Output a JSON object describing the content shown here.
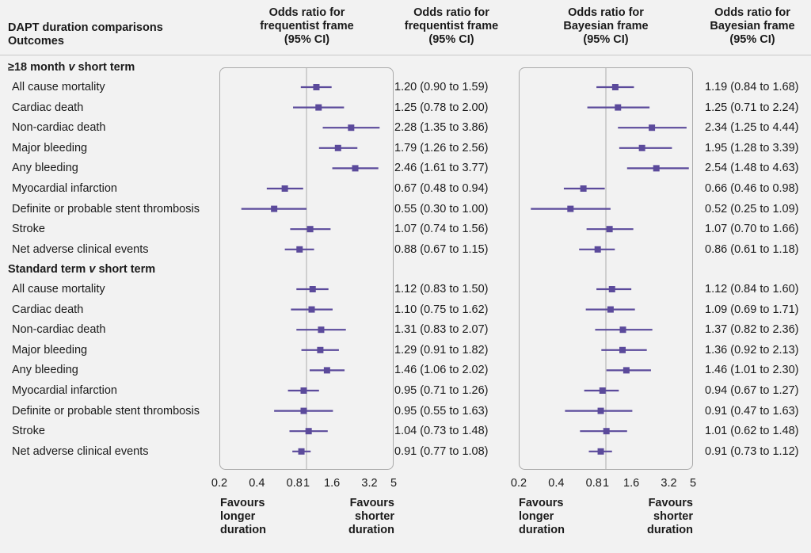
{
  "headers": {
    "left": "DAPT duration comparisons\nOutcomes",
    "col1": "Odds ratio for\nfrequentist frame\n(95% CI)",
    "col2": "Odds ratio for\nfrequentist frame\n(95% CI)",
    "col3": "Odds ratio for\nBayesian frame\n(95% CI)",
    "col4": "Odds ratio for\nBayesian frame\n(95% CI)"
  },
  "favours": {
    "left": "Favours\nlonger\nduration",
    "right": "Favours\nshorter\nduration"
  },
  "chart_data": {
    "type": "forest",
    "x_scale": "log",
    "xlim": [
      0.2,
      5
    ],
    "xticks": [
      0.2,
      0.4,
      0.8,
      1,
      1.6,
      3.2,
      5
    ],
    "xtick_labels": [
      "0.2",
      "0.4",
      "0.8",
      "1",
      "1.6",
      "3.2",
      "5"
    ],
    "reference_line": 1,
    "colors": {
      "marker": "#5b4a9b",
      "refline": "#b8b8b8",
      "panel_border": "#aaaaaa"
    },
    "sections": [
      {
        "title": "≥18 month v short term",
        "title_parts": [
          "≥18 month ",
          "v",
          " short term"
        ],
        "rows": [
          {
            "label": "All cause mortality",
            "freq": [
              1.2,
              0.9,
              1.59
            ],
            "freq_text": "1.20 (0.90 to 1.59)",
            "bayes": [
              1.19,
              0.84,
              1.68
            ],
            "bayes_text": "1.19 (0.84 to 1.68)"
          },
          {
            "label": "Cardiac death",
            "freq": [
              1.25,
              0.78,
              2.0
            ],
            "freq_text": "1.25 (0.78 to 2.00)",
            "bayes": [
              1.25,
              0.71,
              2.24
            ],
            "bayes_text": "1.25 (0.71 to 2.24)"
          },
          {
            "label": "Non-cardiac death",
            "freq": [
              2.28,
              1.35,
              3.86
            ],
            "freq_text": "2.28 (1.35 to 3.86)",
            "bayes": [
              2.34,
              1.25,
              4.44
            ],
            "bayes_text": "2.34 (1.25 to 4.44)"
          },
          {
            "label": "Major bleeding",
            "freq": [
              1.79,
              1.26,
              2.56
            ],
            "freq_text": "1.79 (1.26 to 2.56)",
            "bayes": [
              1.95,
              1.28,
              3.39
            ],
            "bayes_text": "1.95 (1.28 to 3.39)"
          },
          {
            "label": "Any bleeding",
            "freq": [
              2.46,
              1.61,
              3.77
            ],
            "freq_text": "2.46 (1.61 to 3.77)",
            "bayes": [
              2.54,
              1.48,
              4.63
            ],
            "bayes_text": "2.54 (1.48 to 4.63)"
          },
          {
            "label": "Myocardial infarction",
            "freq": [
              0.67,
              0.48,
              0.94
            ],
            "freq_text": "0.67 (0.48 to 0.94)",
            "bayes": [
              0.66,
              0.46,
              0.98
            ],
            "bayes_text": "0.66 (0.46 to 0.98)"
          },
          {
            "label": "Definite or probable stent thrombosis",
            "freq": [
              0.55,
              0.3,
              1.0
            ],
            "freq_text": "0.55 (0.30 to 1.00)",
            "bayes": [
              0.52,
              0.25,
              1.09
            ],
            "bayes_text": "0.52 (0.25 to 1.09)"
          },
          {
            "label": "Stroke",
            "freq": [
              1.07,
              0.74,
              1.56
            ],
            "freq_text": "1.07 (0.74 to 1.56)",
            "bayes": [
              1.07,
              0.7,
              1.66
            ],
            "bayes_text": "1.07 (0.70 to 1.66)"
          },
          {
            "label": "Net adverse clinical events",
            "freq": [
              0.88,
              0.67,
              1.15
            ],
            "freq_text": "0.88 (0.67 to 1.15)",
            "bayes": [
              0.86,
              0.61,
              1.18
            ],
            "bayes_text": "0.86 (0.61 to 1.18)"
          }
        ]
      },
      {
        "title": "Standard term v short term",
        "title_parts": [
          "Standard term ",
          "v",
          " short term"
        ],
        "rows": [
          {
            "label": "All cause mortality",
            "freq": [
              1.12,
              0.83,
              1.5
            ],
            "freq_text": "1.12 (0.83 to 1.50)",
            "bayes": [
              1.12,
              0.84,
              1.6
            ],
            "bayes_text": "1.12 (0.84 to 1.60)"
          },
          {
            "label": "Cardiac death",
            "freq": [
              1.1,
              0.75,
              1.62
            ],
            "freq_text": "1.10 (0.75 to 1.62)",
            "bayes": [
              1.09,
              0.69,
              1.71
            ],
            "bayes_text": "1.09 (0.69 to 1.71)"
          },
          {
            "label": "Non-cardiac death",
            "freq": [
              1.31,
              0.83,
              2.07
            ],
            "freq_text": "1.31 (0.83 to 2.07)",
            "bayes": [
              1.37,
              0.82,
              2.36
            ],
            "bayes_text": "1.37 (0.82 to 2.36)"
          },
          {
            "label": "Major bleeding",
            "freq": [
              1.29,
              0.91,
              1.82
            ],
            "freq_text": "1.29 (0.91 to 1.82)",
            "bayes": [
              1.36,
              0.92,
              2.13
            ],
            "bayes_text": "1.36 (0.92 to 2.13)"
          },
          {
            "label": "Any bleeding",
            "freq": [
              1.46,
              1.06,
              2.02
            ],
            "freq_text": "1.46 (1.06 to 2.02)",
            "bayes": [
              1.46,
              1.01,
              2.3
            ],
            "bayes_text": "1.46 (1.01 to 2.30)"
          },
          {
            "label": "Myocardial infarction",
            "freq": [
              0.95,
              0.71,
              1.26
            ],
            "freq_text": "0.95 (0.71 to 1.26)",
            "bayes": [
              0.94,
              0.67,
              1.27
            ],
            "bayes_text": "0.94 (0.67 to 1.27)"
          },
          {
            "label": "Definite or probable stent thrombosis",
            "freq": [
              0.95,
              0.55,
              1.63
            ],
            "freq_text": "0.95 (0.55 to 1.63)",
            "bayes": [
              0.91,
              0.47,
              1.63
            ],
            "bayes_text": "0.91 (0.47 to 1.63)"
          },
          {
            "label": "Stroke",
            "freq": [
              1.04,
              0.73,
              1.48
            ],
            "freq_text": "1.04 (0.73 to 1.48)",
            "bayes": [
              1.01,
              0.62,
              1.48
            ],
            "bayes_text": "1.01 (0.62 to 1.48)"
          },
          {
            "label": "Net adverse clinical events",
            "freq": [
              0.91,
              0.77,
              1.08
            ],
            "freq_text": "0.91 (0.77 to 1.08)",
            "bayes": [
              0.91,
              0.73,
              1.12
            ],
            "bayes_text": "0.91 (0.73 to 1.12)"
          }
        ]
      }
    ]
  }
}
